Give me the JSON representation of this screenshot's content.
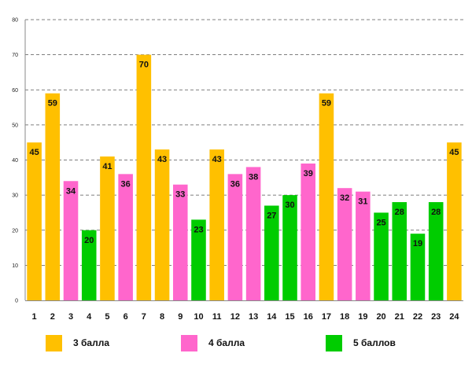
{
  "chart_data": {
    "type": "bar",
    "title": "",
    "xlabel": "",
    "ylabel": "",
    "ylim": [
      0,
      80
    ],
    "ytick_step": 10,
    "grid": true,
    "legend_position": "bottom",
    "categories": [
      "1",
      "2",
      "3",
      "4",
      "5",
      "6",
      "7",
      "8",
      "9",
      "10",
      "11",
      "12",
      "13",
      "14",
      "15",
      "16",
      "17",
      "18",
      "19",
      "20",
      "21",
      "22",
      "23",
      "24"
    ],
    "values": [
      45,
      59,
      34,
      20,
      41,
      36,
      70,
      43,
      33,
      23,
      43,
      36,
      38,
      27,
      30,
      39,
      59,
      32,
      31,
      25,
      28,
      19,
      28,
      45
    ],
    "groups": [
      "3 балла",
      "3 балла",
      "4 балла",
      "5 баллов",
      "3 балла",
      "4 балла",
      "3 балла",
      "3 балла",
      "4 балла",
      "5 баллов",
      "3 балла",
      "4 балла",
      "4 балла",
      "5 баллов",
      "5 баллов",
      "4 балла",
      "3 балла",
      "4 балла",
      "4 балла",
      "5 баллов",
      "5 баллов",
      "5 баллов",
      "5 баллов",
      "3 балла"
    ],
    "legend": [
      {
        "name": "3 балла",
        "color": "#FFC000"
      },
      {
        "name": "4 балла",
        "color": "#FF66CC"
      },
      {
        "name": "5 баллов",
        "color": "#00CC00"
      }
    ]
  }
}
